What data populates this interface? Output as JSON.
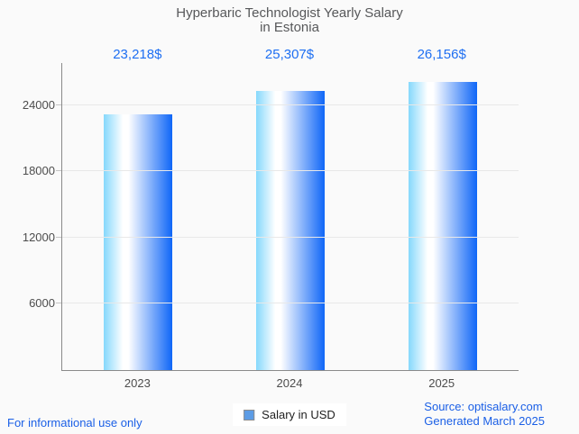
{
  "title": {
    "line1": "Hyperbaric Technologist Yearly Salary",
    "line2": "in Estonia"
  },
  "chart_data": {
    "type": "bar",
    "title": "Hyperbaric Technologist Yearly Salary in Estonia",
    "categories": [
      "2023",
      "2024",
      "2025"
    ],
    "series": [
      {
        "name": "Salary in USD",
        "values": [
          23218,
          25307,
          26156
        ]
      }
    ],
    "value_labels": [
      "23,218$",
      "25,307$",
      "26,156$"
    ],
    "yticks": [
      6000,
      12000,
      18000,
      24000
    ],
    "ylim": [
      0,
      27836
    ],
    "xlabel": "",
    "ylabel": "",
    "grid": true,
    "legend_position": "bottom",
    "bar_gradient": [
      "#85D8FC",
      "#FFFFFF",
      "#0F66F7"
    ]
  },
  "legend": {
    "label": "Salary in USD",
    "marker_color": "#5C9CE6"
  },
  "footer": {
    "left": "For informational use only",
    "source": "Source: optisalary.com",
    "generated": "Generated March 2025"
  },
  "colors": {
    "background": "#FAFAFA",
    "title_text": "#57585A",
    "value_text": "#1E6FF2",
    "axis_line": "#8A8A8A",
    "gridline": "#E8E8E8",
    "tick_label": "#4D4D4D",
    "footer_link": "#1A5FE6",
    "bar_left": "#85D8FC",
    "bar_highlight": "#FFFFFF",
    "bar_right": "#0F66F7"
  }
}
